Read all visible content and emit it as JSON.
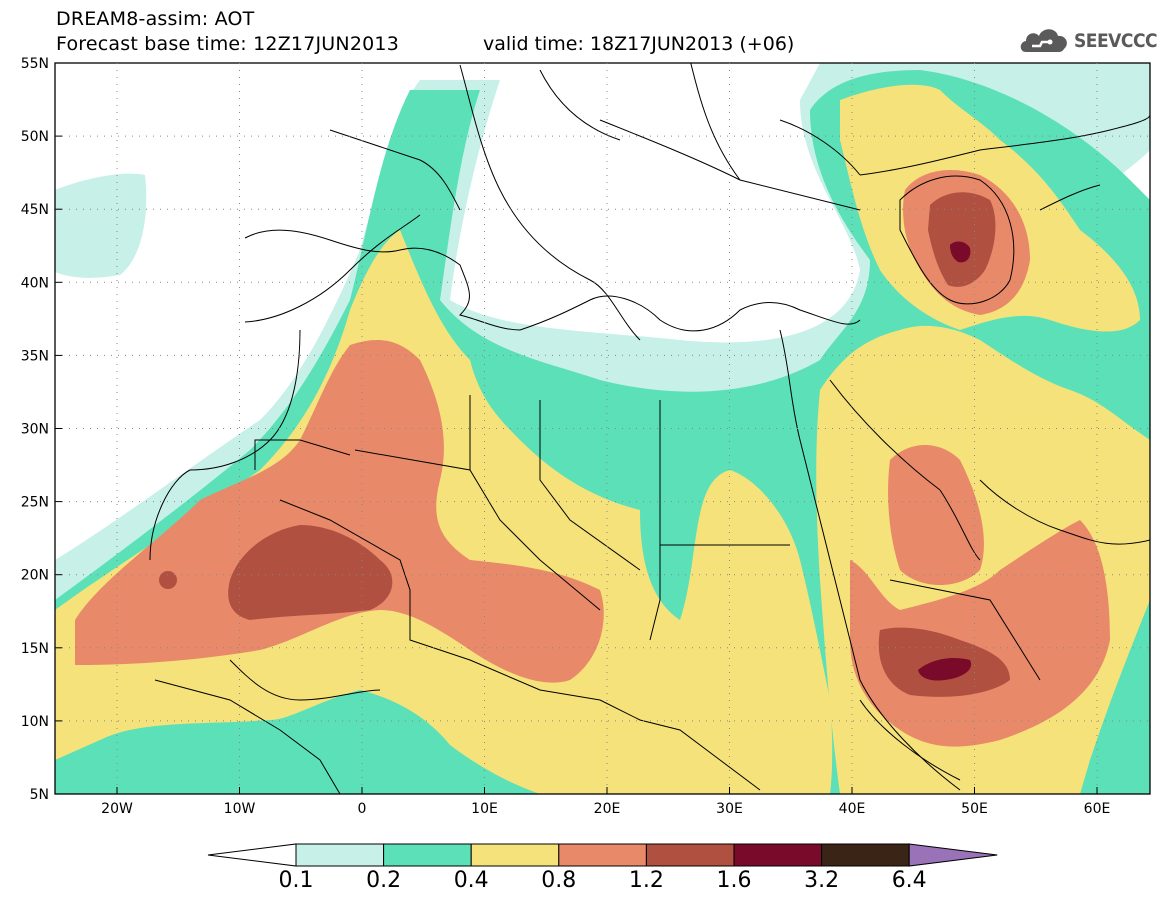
{
  "header": {
    "line1": "DREAM8-assim: AOT",
    "line2": "Forecast base time: 12Z17JUN2013",
    "line2b": "valid time: 18Z17JUN2013 (+06)",
    "logo_text": "SEEVCCC",
    "logo_icon": "cloud-icon"
  },
  "axes": {
    "lat_labels": [
      "55N",
      "50N",
      "45N",
      "40N",
      "35N",
      "30N",
      "25N",
      "20N",
      "15N",
      "10N",
      "5N"
    ],
    "lon_labels": [
      "20W",
      "10W",
      "0",
      "10E",
      "20E",
      "30E",
      "40E",
      "50E",
      "60E"
    ]
  },
  "colorbar": {
    "labels": [
      "0.1",
      "0.2",
      "0.4",
      "0.8",
      "1.2",
      "1.6",
      "3.2",
      "6.4"
    ],
    "colors": [
      "#ffffff",
      "#c6f0e8",
      "#5ce0b8",
      "#f6e27a",
      "#e8896a",
      "#b05040",
      "#7a0a2a",
      "#3a2416",
      "#9a72b8"
    ]
  }
}
